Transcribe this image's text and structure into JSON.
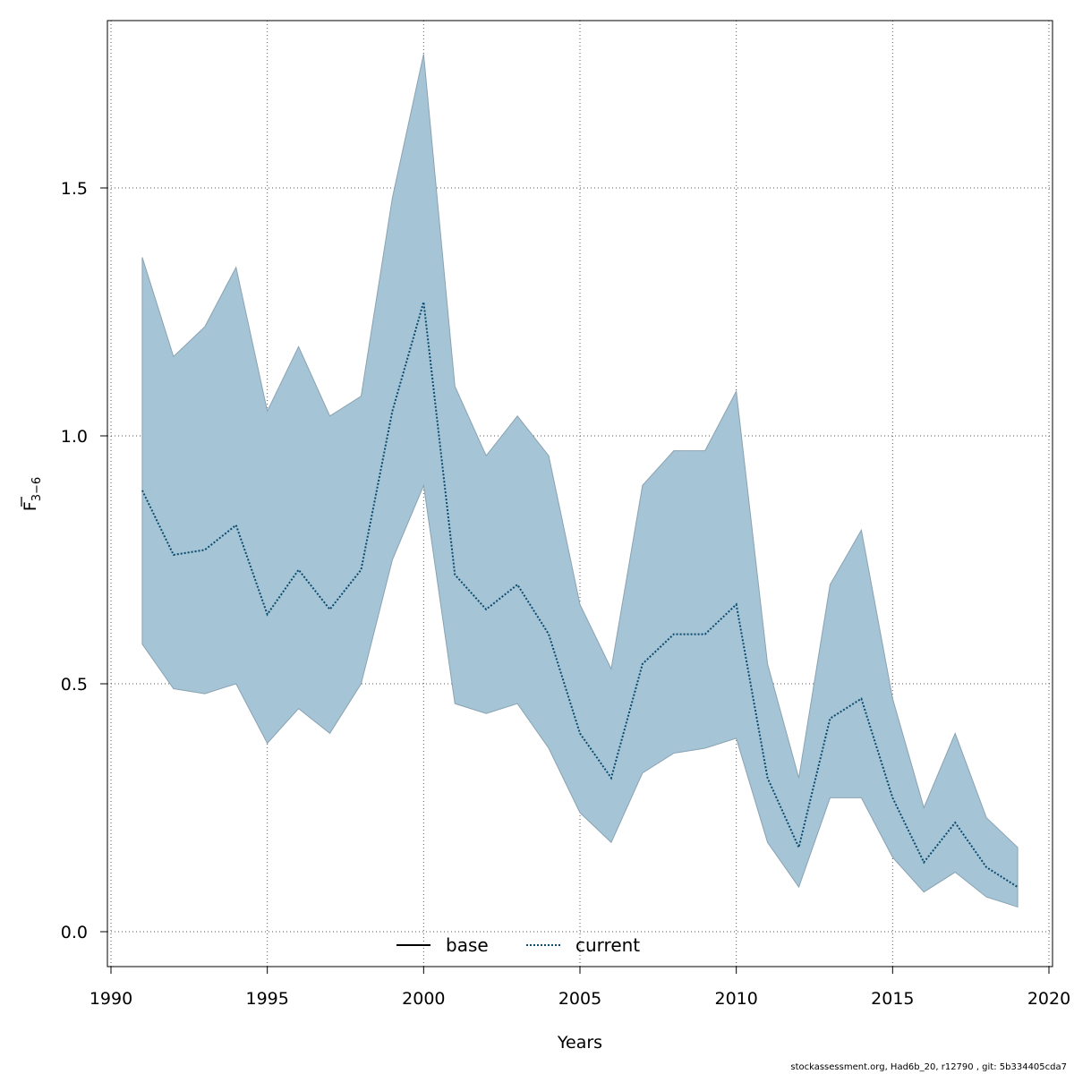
{
  "footer": {
    "credit": "stockassessment.org, Had6b_20, r12790 , git: 5b334405cda7"
  },
  "chart_data": {
    "type": "area",
    "xlabel": "Years",
    "ylabel_main": "F",
    "ylabel_sub": "3−6",
    "xlim": [
      1990,
      2020
    ],
    "ylim": [
      0,
      1.8
    ],
    "x_ticks": [
      1990,
      1995,
      2000,
      2005,
      2010,
      2015,
      2020
    ],
    "y_ticks": [
      0.0,
      0.5,
      1.0,
      1.5
    ],
    "y_tick_labels": [
      "0.0",
      "0.5",
      "1.0",
      "1.5"
    ],
    "grid": true,
    "legend": {
      "placement": "bottom-center",
      "entries": [
        {
          "label": "base",
          "style": "solid",
          "color": "#000000"
        },
        {
          "label": "current",
          "style": "dotted",
          "color": "#0a4a6e"
        }
      ]
    },
    "band_color": "#a5c4d6",
    "x": [
      1991,
      1992,
      1993,
      1994,
      1995,
      1996,
      1997,
      1998,
      1999,
      2000,
      2001,
      2002,
      2003,
      2004,
      2005,
      2006,
      2007,
      2008,
      2009,
      2010,
      2011,
      2012,
      2013,
      2014,
      2015,
      2016,
      2017,
      2018,
      2019
    ],
    "series": [
      {
        "name": "current",
        "values": [
          0.89,
          0.76,
          0.77,
          0.82,
          0.64,
          0.73,
          0.65,
          0.73,
          1.05,
          1.27,
          0.72,
          0.65,
          0.7,
          0.6,
          0.4,
          0.31,
          0.54,
          0.6,
          0.6,
          0.66,
          0.31,
          0.17,
          0.43,
          0.47,
          0.27,
          0.14,
          0.22,
          0.13,
          0.09
        ]
      }
    ],
    "band": {
      "upper": [
        1.36,
        1.16,
        1.22,
        1.34,
        1.05,
        1.18,
        1.04,
        1.08,
        1.48,
        1.77,
        1.1,
        0.96,
        1.04,
        0.96,
        0.66,
        0.53,
        0.9,
        0.97,
        0.97,
        1.09,
        0.54,
        0.31,
        0.7,
        0.81,
        0.47,
        0.25,
        0.4,
        0.23,
        0.17
      ],
      "lower": [
        0.58,
        0.49,
        0.48,
        0.5,
        0.38,
        0.45,
        0.4,
        0.5,
        0.75,
        0.9,
        0.46,
        0.44,
        0.46,
        0.37,
        0.24,
        0.18,
        0.32,
        0.36,
        0.37,
        0.39,
        0.18,
        0.09,
        0.27,
        0.27,
        0.15,
        0.08,
        0.12,
        0.07,
        0.05
      ]
    }
  }
}
